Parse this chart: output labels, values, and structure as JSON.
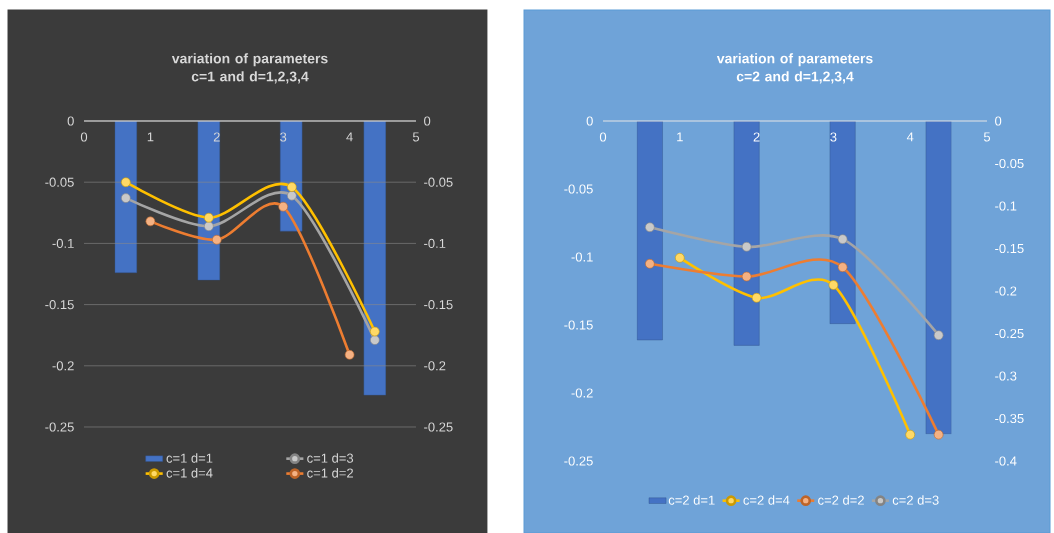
{
  "chart_data": [
    {
      "type": "bar",
      "title": "variation of parameters c=1 and d=1,2,3,4",
      "xlim": [
        0,
        5
      ],
      "xticks": [
        0,
        1,
        2,
        3,
        4,
        5
      ],
      "ylim": [
        -0.25,
        0
      ],
      "yticks": [
        0,
        -0.05,
        -0.1,
        -0.15,
        -0.2,
        -0.25
      ],
      "y2lim": [
        -0.25,
        0
      ],
      "y2ticks": [
        0,
        -0.05,
        -0.1,
        -0.15,
        -0.2,
        -0.25
      ],
      "grid": "y",
      "legend": "bottom",
      "marker": "circle",
      "series": [
        {
          "name": "c=1 d=1",
          "color": "#4472c4",
          "x": [
            0.63,
            1.88,
            3.12,
            4.38
          ],
          "values": [
            -0.124,
            -0.13,
            -0.09,
            -0.224
          ]
        },
        {
          "name": "c=1 d=3",
          "type": "line",
          "axis": "y2",
          "color": "#a5a5a5",
          "x": [
            0.63,
            1.88,
            3.13,
            4.38
          ],
          "values": [
            -0.063,
            -0.086,
            -0.061,
            -0.179
          ]
        },
        {
          "name": "c=1 d=4",
          "type": "line",
          "axis": "y2",
          "color": "#ffc000",
          "x": [
            0.63,
            1.88,
            3.13,
            4.38
          ],
          "values": [
            -0.05,
            -0.079,
            -0.054,
            -0.172
          ]
        },
        {
          "name": "c=1 d=2",
          "type": "line",
          "axis": "y2",
          "color": "#ed7d31",
          "x": [
            1,
            2,
            3,
            4
          ],
          "values": [
            -0.082,
            -0.097,
            -0.07,
            -0.191
          ]
        }
      ]
    },
    {
      "type": "bar",
      "title": "variation of parameters c=2 and d=1,2,3,4",
      "xlim": [
        0,
        5
      ],
      "xticks": [
        0,
        1,
        2,
        3,
        4,
        5
      ],
      "ylim": [
        -0.25,
        0
      ],
      "yticks": [
        0,
        -0.05,
        -0.1,
        -0.15,
        -0.2,
        -0.25
      ],
      "y2lim": [
        -0.4,
        0
      ],
      "y2ticks": [
        0,
        -0.05,
        -0.1,
        -0.15,
        -0.2,
        -0.25,
        -0.3,
        -0.35,
        -0.4
      ],
      "legend": "bottom",
      "marker": "circle",
      "series": [
        {
          "name": "c=2 d=1",
          "color": "#4472c4",
          "x": [
            0.61,
            1.87,
            3.12,
            4.37
          ],
          "values": [
            -0.161,
            -0.165,
            -0.149,
            -0.23
          ]
        },
        {
          "name": "c=2 d=4",
          "type": "line",
          "axis": "y2",
          "color": "#ffc000",
          "x": [
            1,
            2,
            3,
            4
          ],
          "values": [
            -0.161,
            -0.208,
            -0.193,
            -0.369
          ]
        },
        {
          "name": "c=2 d=2",
          "type": "line",
          "axis": "y2",
          "color": "#ed7d31",
          "x": [
            0.61,
            1.87,
            3.12,
            4.37
          ],
          "values": [
            -0.168,
            -0.183,
            -0.172,
            -0.369
          ]
        },
        {
          "name": "c=2 d=3",
          "type": "line",
          "axis": "y2",
          "color": "#a5a5a5",
          "x": [
            0.61,
            1.87,
            3.12,
            4.37
          ],
          "values": [
            -0.125,
            -0.148,
            -0.139,
            -0.252
          ]
        }
      ]
    }
  ]
}
